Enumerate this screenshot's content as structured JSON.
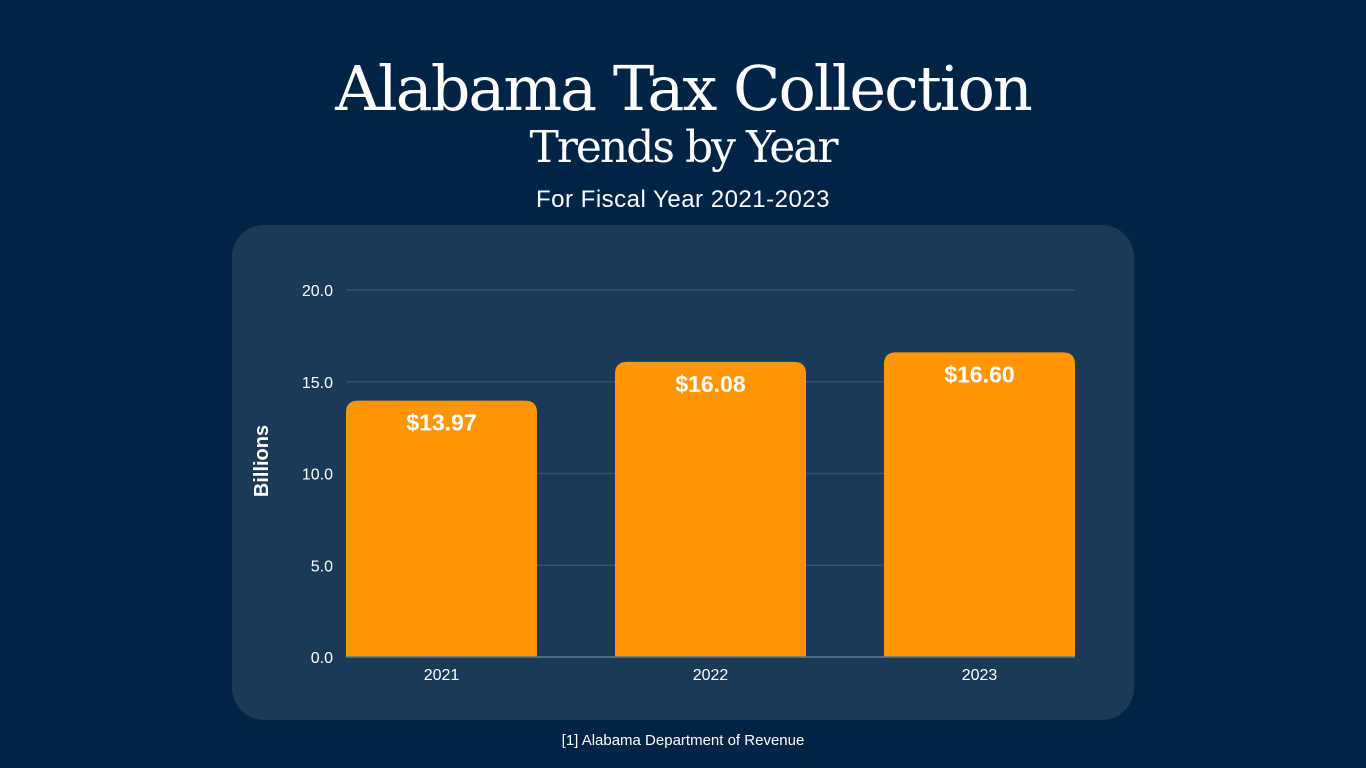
{
  "header": {
    "title_line1": "Alabama Tax Collection",
    "title_line2": "Trends by Year",
    "subtitle": "For Fiscal Year 2021-2023"
  },
  "footer": {
    "source": "[1] Alabama Department of Revenue"
  },
  "colors": {
    "background": "#002445",
    "panel": "#1b3a57",
    "bar": "#ff9608",
    "grid": "#34536f"
  },
  "chart_data": {
    "type": "bar",
    "title": "Alabama Tax Collection Trends by Year",
    "categories": [
      "2021",
      "2022",
      "2023"
    ],
    "values": [
      13.97,
      16.08,
      16.6
    ],
    "data_labels": [
      "$13.97",
      "$16.08",
      "$16.60"
    ],
    "xlabel": "",
    "ylabel": "Billions",
    "ylim": [
      0,
      20
    ],
    "yticks": [
      "0.0",
      "5.0",
      "10.0",
      "15.0",
      "20.0"
    ],
    "grid": true
  }
}
